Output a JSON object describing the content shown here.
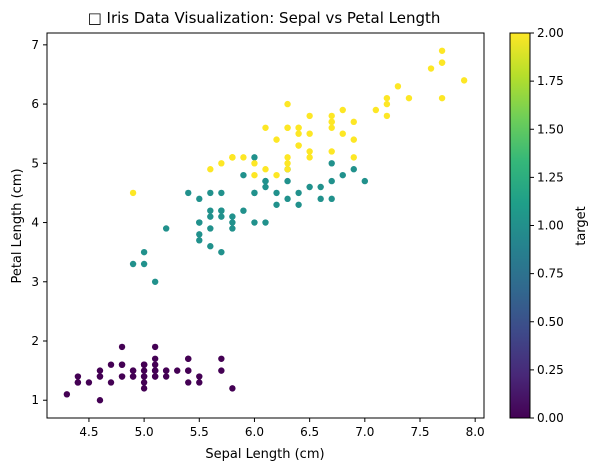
{
  "chart_data": {
    "type": "scatter",
    "title": "□ Iris Data Visualization: Sepal vs Petal Length",
    "xlabel": "Sepal Length (cm)",
    "ylabel": "Petal Length (cm)",
    "xlim": [
      4.12,
      8.08
    ],
    "ylim": [
      0.7,
      7.2
    ],
    "xticks": [
      "4.5",
      "5.0",
      "5.5",
      "6.0",
      "6.5",
      "7.0",
      "7.5",
      "8.0"
    ],
    "yticks": [
      "1",
      "2",
      "3",
      "4",
      "5",
      "6",
      "7"
    ],
    "grid": false,
    "colorbar": {
      "label": "target",
      "range": [
        0.0,
        2.0
      ],
      "ticks": [
        "0.00",
        "0.25",
        "0.50",
        "0.75",
        "1.00",
        "1.25",
        "1.50",
        "1.75",
        "2.00"
      ],
      "colormap": "viridis",
      "colors": [
        "#440154",
        "#482878",
        "#3e4989",
        "#31688e",
        "#26828e",
        "#1f9e89",
        "#35b779",
        "#6ece58",
        "#b5de2b",
        "#fde725"
      ]
    },
    "series": [
      {
        "value": 0,
        "color": "#440154",
        "points": [
          [
            5.1,
            1.4
          ],
          [
            4.9,
            1.4
          ],
          [
            4.7,
            1.3
          ],
          [
            4.6,
            1.5
          ],
          [
            5.0,
            1.4
          ],
          [
            5.4,
            1.7
          ],
          [
            4.6,
            1.4
          ],
          [
            5.0,
            1.5
          ],
          [
            4.4,
            1.4
          ],
          [
            4.9,
            1.5
          ],
          [
            5.4,
            1.5
          ],
          [
            4.8,
            1.6
          ],
          [
            4.8,
            1.4
          ],
          [
            4.3,
            1.1
          ],
          [
            5.8,
            1.2
          ],
          [
            5.7,
            1.5
          ],
          [
            5.4,
            1.3
          ],
          [
            5.1,
            1.4
          ],
          [
            5.7,
            1.7
          ],
          [
            5.1,
            1.5
          ],
          [
            5.4,
            1.7
          ],
          [
            5.1,
            1.5
          ],
          [
            4.6,
            1.0
          ],
          [
            5.1,
            1.7
          ],
          [
            4.8,
            1.9
          ],
          [
            5.0,
            1.6
          ],
          [
            5.0,
            1.6
          ],
          [
            5.2,
            1.5
          ],
          [
            5.2,
            1.4
          ],
          [
            4.7,
            1.6
          ],
          [
            4.8,
            1.6
          ],
          [
            5.4,
            1.5
          ],
          [
            5.2,
            1.5
          ],
          [
            5.5,
            1.4
          ],
          [
            4.9,
            1.5
          ],
          [
            5.0,
            1.2
          ],
          [
            5.5,
            1.3
          ],
          [
            4.9,
            1.4
          ],
          [
            4.4,
            1.3
          ],
          [
            5.1,
            1.5
          ],
          [
            5.0,
            1.3
          ],
          [
            4.5,
            1.3
          ],
          [
            4.4,
            1.3
          ],
          [
            5.0,
            1.6
          ],
          [
            5.1,
            1.9
          ],
          [
            4.8,
            1.4
          ],
          [
            5.1,
            1.6
          ],
          [
            4.6,
            1.4
          ],
          [
            5.3,
            1.5
          ],
          [
            5.0,
            1.4
          ]
        ]
      },
      {
        "value": 1,
        "color": "#21918c",
        "points": [
          [
            7.0,
            4.7
          ],
          [
            6.4,
            4.5
          ],
          [
            6.9,
            4.9
          ],
          [
            5.5,
            4.0
          ],
          [
            6.5,
            4.6
          ],
          [
            5.7,
            4.5
          ],
          [
            6.3,
            4.7
          ],
          [
            4.9,
            3.3
          ],
          [
            6.6,
            4.6
          ],
          [
            5.2,
            3.9
          ],
          [
            5.0,
            3.5
          ],
          [
            5.9,
            4.2
          ],
          [
            6.0,
            4.0
          ],
          [
            6.1,
            4.7
          ],
          [
            5.6,
            3.6
          ],
          [
            6.7,
            4.4
          ],
          [
            5.6,
            4.5
          ],
          [
            5.8,
            4.1
          ],
          [
            6.2,
            4.5
          ],
          [
            5.6,
            3.9
          ],
          [
            5.9,
            4.8
          ],
          [
            6.1,
            4.0
          ],
          [
            6.3,
            4.9
          ],
          [
            6.1,
            4.7
          ],
          [
            6.4,
            4.3
          ],
          [
            6.6,
            4.4
          ],
          [
            6.8,
            4.8
          ],
          [
            6.7,
            5.0
          ],
          [
            6.0,
            4.5
          ],
          [
            5.7,
            3.5
          ],
          [
            5.5,
            3.8
          ],
          [
            5.5,
            3.7
          ],
          [
            5.8,
            3.9
          ],
          [
            6.0,
            5.1
          ],
          [
            5.4,
            4.5
          ],
          [
            6.0,
            4.5
          ],
          [
            6.7,
            4.7
          ],
          [
            6.3,
            4.4
          ],
          [
            5.6,
            4.1
          ],
          [
            5.5,
            4.0
          ],
          [
            5.5,
            4.4
          ],
          [
            6.1,
            4.6
          ],
          [
            5.8,
            4.0
          ],
          [
            5.0,
            3.3
          ],
          [
            5.6,
            4.2
          ],
          [
            5.7,
            4.2
          ],
          [
            5.7,
            4.2
          ],
          [
            6.2,
            4.3
          ],
          [
            5.1,
            3.0
          ],
          [
            5.7,
            4.1
          ]
        ]
      },
      {
        "value": 2,
        "color": "#fde725",
        "points": [
          [
            6.3,
            6.0
          ],
          [
            5.8,
            5.1
          ],
          [
            7.1,
            5.9
          ],
          [
            6.3,
            5.6
          ],
          [
            6.5,
            5.8
          ],
          [
            7.6,
            6.6
          ],
          [
            4.9,
            4.5
          ],
          [
            7.3,
            6.3
          ],
          [
            6.7,
            5.8
          ],
          [
            7.2,
            6.1
          ],
          [
            6.5,
            5.1
          ],
          [
            6.4,
            5.3
          ],
          [
            6.8,
            5.5
          ],
          [
            5.7,
            5.0
          ],
          [
            5.8,
            5.1
          ],
          [
            6.4,
            5.3
          ],
          [
            6.5,
            5.5
          ],
          [
            7.7,
            6.7
          ],
          [
            7.7,
            6.9
          ],
          [
            6.0,
            5.0
          ],
          [
            6.9,
            5.7
          ],
          [
            5.6,
            4.9
          ],
          [
            7.7,
            6.7
          ],
          [
            6.3,
            4.9
          ],
          [
            6.7,
            5.7
          ],
          [
            7.2,
            6.0
          ],
          [
            6.2,
            4.8
          ],
          [
            6.1,
            4.9
          ],
          [
            6.4,
            5.6
          ],
          [
            7.2,
            5.8
          ],
          [
            7.4,
            6.1
          ],
          [
            7.9,
            6.4
          ],
          [
            6.4,
            5.6
          ],
          [
            6.3,
            5.1
          ],
          [
            6.1,
            5.6
          ],
          [
            7.7,
            6.1
          ],
          [
            6.3,
            5.6
          ],
          [
            6.4,
            5.5
          ],
          [
            6.0,
            4.8
          ],
          [
            6.9,
            5.4
          ],
          [
            6.7,
            5.6
          ],
          [
            6.9,
            5.1
          ],
          [
            5.8,
            5.1
          ],
          [
            6.8,
            5.9
          ],
          [
            6.7,
            5.7
          ],
          [
            6.7,
            5.2
          ],
          [
            6.3,
            5.0
          ],
          [
            6.5,
            5.2
          ],
          [
            6.2,
            5.4
          ],
          [
            5.9,
            5.1
          ]
        ]
      }
    ]
  }
}
